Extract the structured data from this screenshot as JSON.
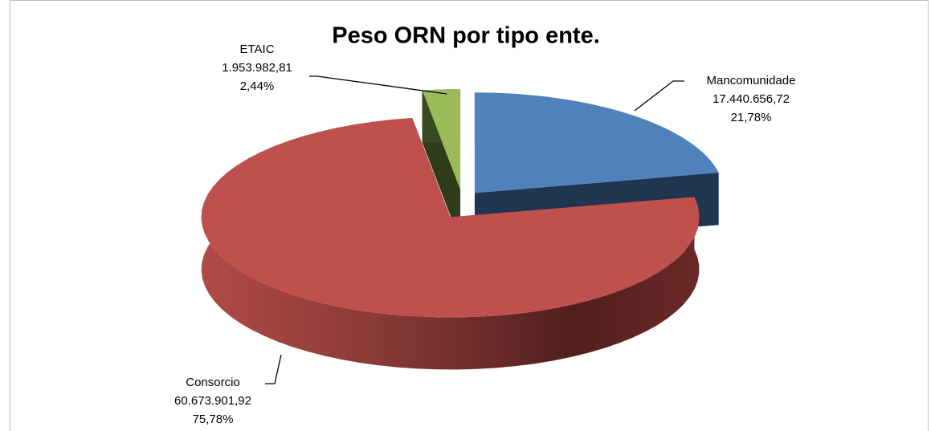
{
  "chart_data": {
    "type": "pie3d",
    "title": "Peso ORN por tipo ente.",
    "categories": [
      "Mancomunidade",
      "Consorcio",
      "ETAIC"
    ],
    "values": [
      17440656.72,
      60673901.92,
      1953982.81
    ],
    "value_labels": [
      "17.440.656,72",
      "60.673.901,92",
      "1.953.982,81"
    ],
    "percentages": [
      21.78,
      75.78,
      2.44
    ],
    "percentage_labels": [
      "21,78%",
      "75,78%",
      "2,44%"
    ],
    "colors": [
      "#4f81bd",
      "#c0504d",
      "#9bbb59"
    ]
  }
}
